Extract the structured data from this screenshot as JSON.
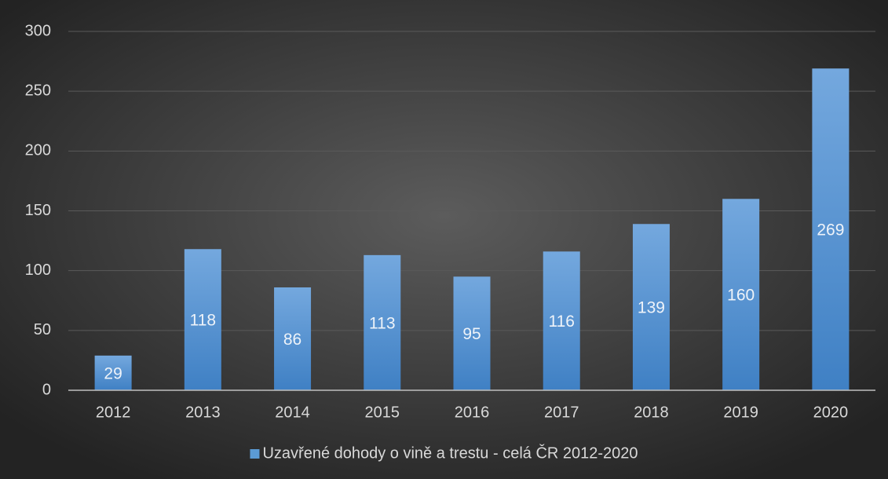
{
  "chart_data": {
    "type": "bar",
    "categories": [
      "2012",
      "2013",
      "2014",
      "2015",
      "2016",
      "2017",
      "2018",
      "2019",
      "2020"
    ],
    "series": [
      {
        "name": "Uzavřené dohody o vině a trestu - celá ČR 2012-2020",
        "color": "#5b9bd5",
        "values": [
          29,
          118,
          86,
          113,
          95,
          116,
          139,
          160,
          269
        ]
      }
    ],
    "ylim": [
      0,
      300
    ],
    "yticks": [
      0,
      50,
      100,
      150,
      200,
      250,
      300
    ],
    "grid": true,
    "legend": "bottom"
  }
}
